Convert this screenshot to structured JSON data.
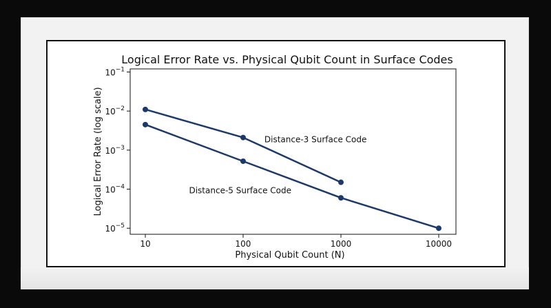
{
  "chart_data": {
    "type": "line",
    "title": "Logical Error Rate vs. Physical Qubit Count in Surface Codes",
    "xlabel": "Physical Qubit Count (N)",
    "ylabel": "Logical Error Rate (log scale)",
    "xscale": "log",
    "yscale": "log",
    "xlim": [
      7,
      15000
    ],
    "ylim": [
      7e-06,
      0.12
    ],
    "xticks": [
      {
        "value": 10,
        "label": "10"
      },
      {
        "value": 100,
        "label": "100"
      },
      {
        "value": 1000,
        "label": "1000"
      },
      {
        "value": 10000,
        "label": "10000"
      }
    ],
    "yticks": [
      {
        "value": 0.1,
        "exp": "−1"
      },
      {
        "value": 0.01,
        "exp": "−2"
      },
      {
        "value": 0.001,
        "exp": "−3"
      },
      {
        "value": 0.0001,
        "exp": "−4"
      },
      {
        "value": 1e-05,
        "exp": "−5"
      }
    ],
    "ytick_base": "10",
    "grid": false,
    "line_color": "#1b3a6b",
    "series": [
      {
        "x": [
          10,
          100,
          1000
        ],
        "y": [
          0.011,
          0.0021,
          0.00015
        ]
      },
      {
        "x": [
          10,
          100,
          1000,
          10000
        ],
        "y": [
          0.0045,
          0.00052,
          6e-05,
          1e-05
        ]
      }
    ],
    "annotations": [
      {
        "text": "Distance-3 Surface Code",
        "x": 165,
        "y": 0.0016
      },
      {
        "text": "Distance-5 Surface Code",
        "x": 28,
        "y": 7.8e-05
      }
    ]
  }
}
